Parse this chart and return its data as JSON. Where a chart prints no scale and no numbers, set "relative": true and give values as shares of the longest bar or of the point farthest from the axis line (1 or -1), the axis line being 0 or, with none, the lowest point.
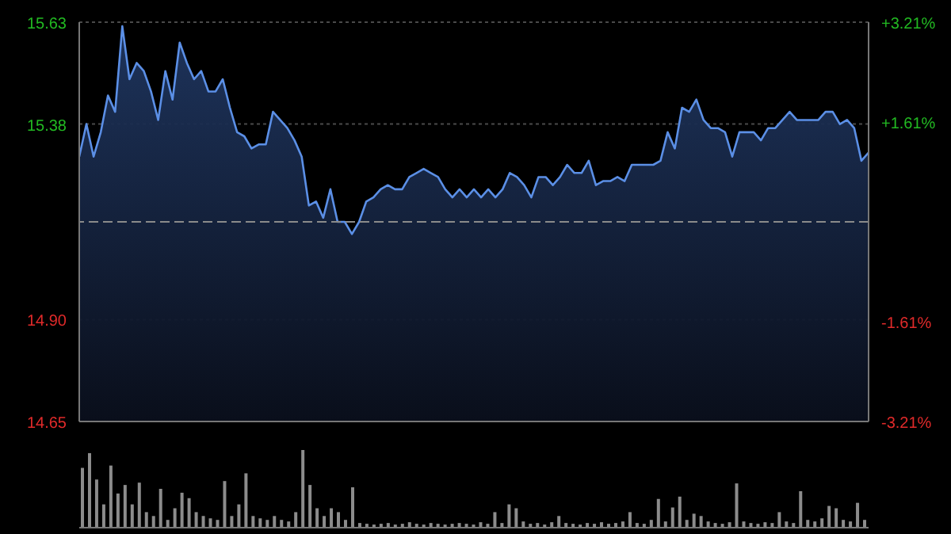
{
  "chart_data": [
    {
      "type": "area",
      "categories": [
        null,
        null,
        null,
        null,
        null,
        null,
        null,
        null,
        null,
        null,
        null,
        null,
        null,
        null,
        null,
        null,
        null,
        null,
        null,
        null,
        null,
        null,
        null,
        null,
        null,
        null,
        null,
        null,
        null,
        null,
        null,
        null,
        null,
        null,
        null,
        null,
        null,
        null,
        null,
        null,
        null,
        null,
        null,
        null,
        null,
        null,
        null,
        null,
        null,
        null,
        null,
        null,
        null,
        null,
        null,
        null,
        null,
        null,
        null,
        null,
        null,
        null,
        null,
        null,
        null,
        null,
        null,
        null,
        null,
        null,
        null,
        null,
        null,
        null,
        null,
        null,
        null,
        null,
        null,
        null,
        null,
        null,
        null,
        null,
        null,
        null,
        null,
        null,
        null,
        null,
        null,
        null,
        null,
        null,
        null,
        null,
        null,
        null,
        null,
        null,
        null,
        null,
        null,
        null,
        null,
        null,
        null,
        null,
        null,
        null,
        null
      ],
      "series": [
        {
          "color": "#5b8fe6",
          "values": [
            15.3,
            15.38,
            15.3,
            15.36,
            15.45,
            15.41,
            15.62,
            15.49,
            15.53,
            15.51,
            15.46,
            15.39,
            15.51,
            15.44,
            15.58,
            15.53,
            15.49,
            15.51,
            15.46,
            15.46,
            15.49,
            15.42,
            15.36,
            15.35,
            15.32,
            15.33,
            15.33,
            15.41,
            15.39,
            15.37,
            15.34,
            15.3,
            15.18,
            15.19,
            15.15,
            15.22,
            15.14,
            15.14,
            15.11,
            15.14,
            15.19,
            15.2,
            15.22,
            15.23,
            15.22,
            15.22,
            15.25,
            15.26,
            15.27,
            15.26,
            15.25,
            15.22,
            15.2,
            15.22,
            15.2,
            15.22,
            15.2,
            15.22,
            15.2,
            15.22,
            15.26,
            15.25,
            15.23,
            15.2,
            15.25,
            15.25,
            15.23,
            15.25,
            15.28,
            15.26,
            15.26,
            15.29,
            15.23,
            15.24,
            15.24,
            15.25,
            15.24,
            15.28,
            15.28,
            15.28,
            15.28,
            15.29,
            15.36,
            15.32,
            15.42,
            15.41,
            15.44,
            15.39,
            15.37,
            15.37,
            15.36,
            15.3,
            15.36,
            15.36,
            15.36,
            15.34,
            15.37,
            15.37,
            15.39,
            15.41,
            15.39,
            15.39,
            15.39,
            15.39,
            15.41,
            15.41,
            15.38,
            15.39,
            15.37,
            15.29,
            15.31
          ]
        }
      ],
      "ylim": [
        14.65,
        15.63
      ],
      "yticks": [
        14.65,
        {
          "value": 14.9,
          "label": "14.90"
        },
        15.38,
        15.63
      ],
      "y2lim": [
        -3.21,
        3.21
      ],
      "y2ticks": [
        {
          "value": -3.21,
          "label": "-3.21%"
        },
        {
          "value": -1.61,
          "label": "-1.61%"
        },
        {
          "value": 1.61,
          "label": "+1.61%"
        },
        {
          "value": 3.21,
          "label": "+3.21%"
        }
      ],
      "ref_lines": [
        {
          "axis": "y2",
          "value": 0,
          "line_style": "dashed",
          "color": "#8a8a8a"
        }
      ],
      "grid": true,
      "legend": false,
      "tick_labels": "y",
      "marker": "none",
      "line_style": "solid"
    },
    {
      "type": "bar",
      "relative": true,
      "categories": [
        null,
        null,
        null,
        null,
        null,
        null,
        null,
        null,
        null,
        null,
        null,
        null,
        null,
        null,
        null,
        null,
        null,
        null,
        null,
        null,
        null,
        null,
        null,
        null,
        null,
        null,
        null,
        null,
        null,
        null,
        null,
        null,
        null,
        null,
        null,
        null,
        null,
        null,
        null,
        null,
        null,
        null,
        null,
        null,
        null,
        null,
        null,
        null,
        null,
        null,
        null,
        null,
        null,
        null,
        null,
        null,
        null,
        null,
        null,
        null,
        null,
        null,
        null,
        null,
        null,
        null,
        null,
        null,
        null,
        null,
        null,
        null,
        null,
        null,
        null,
        null,
        null,
        null,
        null,
        null,
        null,
        null,
        null,
        null,
        null,
        null,
        null,
        null,
        null,
        null,
        null,
        null,
        null,
        null,
        null,
        null,
        null,
        null,
        null,
        null,
        null,
        null,
        null,
        null,
        null,
        null,
        null,
        null,
        null,
        null,
        null
      ],
      "series": [
        {
          "color": "#8c8c8c",
          "values": [
            0.77,
            0.96,
            0.62,
            0.3,
            0.8,
            0.44,
            0.55,
            0.3,
            0.58,
            0.2,
            0.15,
            0.5,
            0.1,
            0.25,
            0.45,
            0.38,
            0.2,
            0.15,
            0.12,
            0.1,
            0.6,
            0.15,
            0.3,
            0.7,
            0.15,
            0.12,
            0.1,
            0.15,
            0.1,
            0.08,
            0.2,
            1,
            0.55,
            0.25,
            0.15,
            0.25,
            0.2,
            0.1,
            0.52,
            0.06,
            0.05,
            0.04,
            0.05,
            0.06,
            0.04,
            0.05,
            0.07,
            0.05,
            0.04,
            0.06,
            0.05,
            0.04,
            0.05,
            0.06,
            0.05,
            0.04,
            0.07,
            0.05,
            0.2,
            0.06,
            0.3,
            0.25,
            0.08,
            0.05,
            0.06,
            0.04,
            0.07,
            0.15,
            0.06,
            0.05,
            0.04,
            0.06,
            0.05,
            0.07,
            0.05,
            0.06,
            0.08,
            0.2,
            0.06,
            0.05,
            0.1,
            0.37,
            0.08,
            0.26,
            0.4,
            0.1,
            0.18,
            0.15,
            0.08,
            0.06,
            0.05,
            0.07,
            0.57,
            0.08,
            0.06,
            0.05,
            0.07,
            0.06,
            0.2,
            0.08,
            0.06,
            0.47,
            0.1,
            0.08,
            0.12,
            0.28,
            0.25,
            0.1,
            0.08,
            0.32,
            0.1
          ]
        }
      ],
      "grid": false,
      "legend": false,
      "tick_labels": false
    }
  ]
}
